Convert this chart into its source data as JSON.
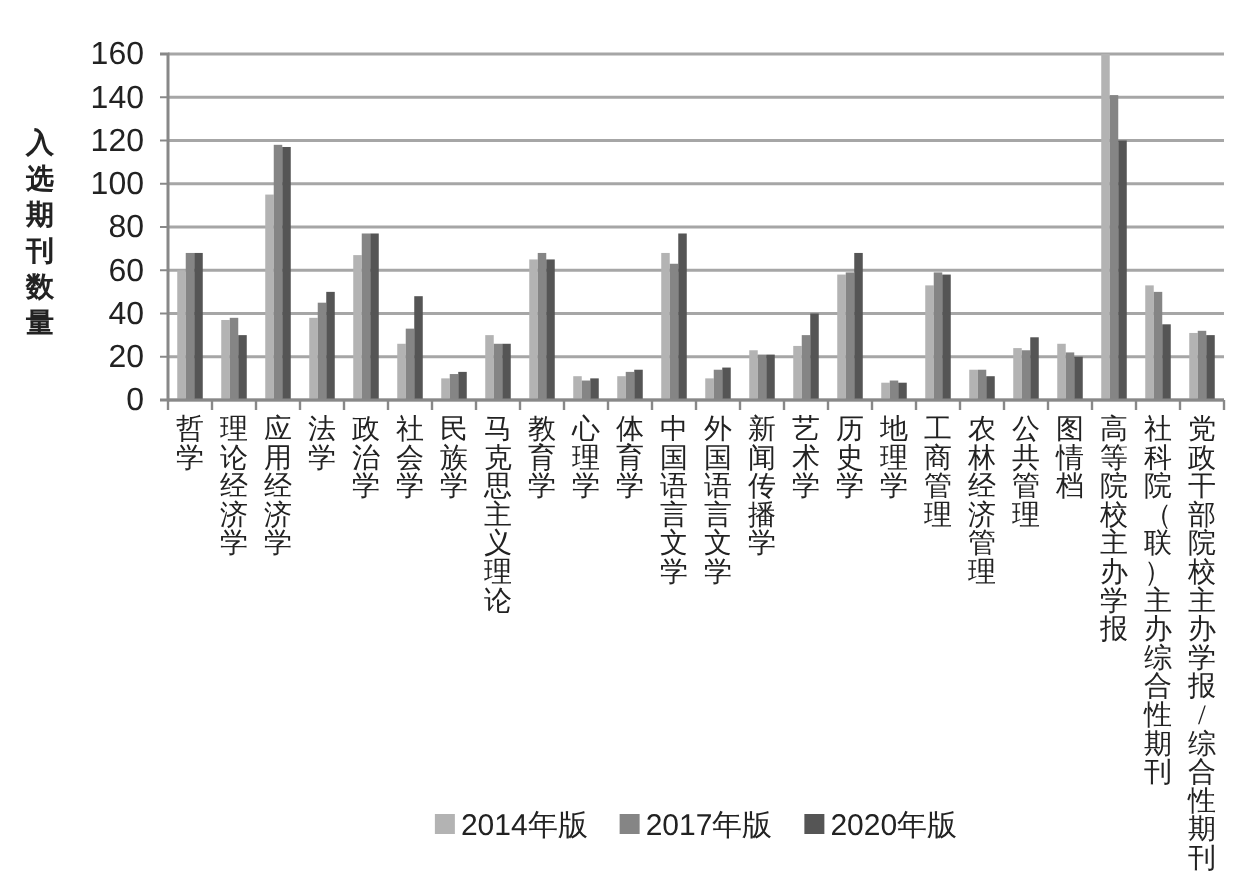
{
  "chart_data": {
    "type": "bar",
    "ylabel": "入选期刊数量",
    "categories": [
      "哲学",
      "理论经济学",
      "应用经济学",
      "法学",
      "政治学",
      "社会学",
      "民族学",
      "马克思主义理论",
      "教育学",
      "心理学",
      "体育学",
      "中国语言文学",
      "外国语言文学",
      "新闻传播学",
      "艺术学",
      "历史学",
      "地理学",
      "工商管理",
      "农林经济管理",
      "公共管理",
      "图情档",
      "高等院校主办学报",
      "社科院（联）主办综合性期刊",
      "党政干部院校主办学报/综合性期刊"
    ],
    "series": [
      {
        "name": "2014年版",
        "color": "#b3b3b3",
        "values": [
          60,
          37,
          95,
          38,
          67,
          26,
          10,
          30,
          65,
          11,
          11,
          68,
          10,
          23,
          25,
          58,
          8,
          53,
          14,
          24,
          26,
          160,
          53,
          31
        ]
      },
      {
        "name": "2017年版",
        "color": "#858585",
        "values": [
          68,
          38,
          118,
          45,
          77,
          33,
          12,
          26,
          68,
          9,
          13,
          63,
          14,
          21,
          30,
          59,
          9,
          59,
          14,
          23,
          22,
          141,
          50,
          32
        ]
      },
      {
        "name": "2020年版",
        "color": "#555555",
        "values": [
          68,
          30,
          117,
          50,
          77,
          48,
          13,
          26,
          65,
          10,
          14,
          77,
          15,
          21,
          40,
          68,
          8,
          58,
          11,
          29,
          20,
          120,
          35,
          30
        ]
      }
    ],
    "ylim": [
      0,
      160
    ],
    "yticks": [
      0,
      20,
      40,
      60,
      80,
      100,
      120,
      140,
      160
    ],
    "grid": "y",
    "legend": "bottom"
  }
}
